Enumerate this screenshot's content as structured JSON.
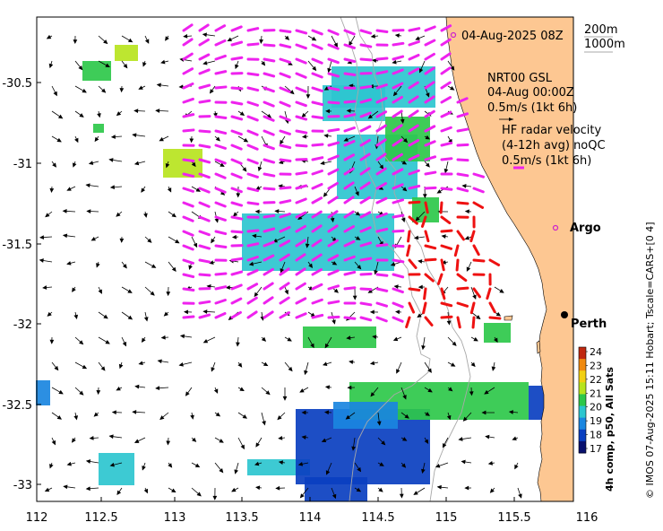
{
  "map": {
    "date_label": "04-Aug-2025 08Z",
    "depth_labels": [
      "200m",
      "1000m"
    ],
    "nrt_title": "NRT00 GSL",
    "nrt_date": "04-Aug 00:00Z",
    "nrt_scale": "0.5m/s (1kt 6h)",
    "hf_title": "HF radar velocity",
    "hf_subtitle": "(4-12h avg) noQC",
    "hf_scale": "0.5m/s (1kt 6h)",
    "argo_label": "Argo",
    "city_label": "Perth",
    "credit": "© IMOS 07-Aug-2025 15:11 Hobart; Tscale=CARS+[0 4]",
    "colorbar_title": "4h comp, p50, All Sats",
    "colorbar_ticks": [
      "17",
      "18",
      "19",
      "20",
      "21",
      "22",
      "23",
      "24"
    ],
    "colorbar_colors": [
      "#08106e",
      "#0a3fc0",
      "#1a86e0",
      "#2cc6cf",
      "#2ec84a",
      "#b7e41e",
      "#f2d012",
      "#f08a10",
      "#c02810"
    ],
    "x_ticks": [
      "112",
      "112.5",
      "113",
      "113.5",
      "114",
      "114.5",
      "115",
      "115.5",
      "116"
    ],
    "y_ticks": [
      "-30.5",
      "-31",
      "-31.5",
      "-32",
      "-32.5",
      "-33"
    ],
    "colors": {
      "land": "#fdc792",
      "hf_vectors": "#ee22ee",
      "hf_vectors_red": "#ee1111",
      "model_vectors": "#000000",
      "argo_marker": "#cc22cc"
    }
  }
}
